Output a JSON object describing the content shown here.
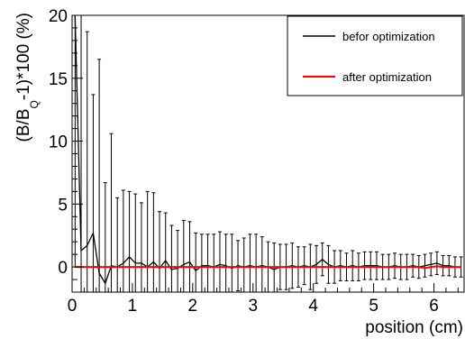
{
  "chart_data": {
    "type": "line",
    "xlabel": "position (cm)",
    "ylabel_parts": [
      "(B/B",
      "Q",
      "-1)*100 (%)"
    ],
    "xlim": [
      0,
      6.5
    ],
    "ylim": [
      -2,
      20
    ],
    "x_ticks": [
      0,
      1,
      2,
      3,
      4,
      5,
      6
    ],
    "y_ticks": [
      0,
      5,
      10,
      15,
      20
    ],
    "legend_position": "top-right",
    "grid": false,
    "series": [
      {
        "name": "befor optimization",
        "color": "#000000",
        "x": [
          0.05,
          0.15,
          0.25,
          0.35,
          0.45,
          0.55,
          0.65,
          0.75,
          0.85,
          0.95,
          1.05,
          1.15,
          1.25,
          1.35,
          1.45,
          1.55,
          1.65,
          1.75,
          1.85,
          1.95,
          2.05,
          2.15,
          2.25,
          2.35,
          2.45,
          2.55,
          2.65,
          2.75,
          2.85,
          2.95,
          3.05,
          3.15,
          3.25,
          3.35,
          3.45,
          3.55,
          3.65,
          3.75,
          3.85,
          3.95,
          4.05,
          4.15,
          4.25,
          4.35,
          4.45,
          4.55,
          4.65,
          4.75,
          4.85,
          4.95,
          5.05,
          5.15,
          5.25,
          5.35,
          5.45,
          5.55,
          5.65,
          5.75,
          5.85,
          5.95,
          6.05,
          6.15,
          6.25,
          6.35,
          6.45
        ],
        "y": [
          20,
          1.3,
          1.7,
          2.7,
          -0.5,
          -1.3,
          0.1,
          0.0,
          0.3,
          0.8,
          0.3,
          0.3,
          0.0,
          0.4,
          -0.1,
          0.5,
          -0.2,
          -0.1,
          0.2,
          0.4,
          -0.3,
          0.1,
          0.1,
          0.0,
          0.2,
          0.1,
          -0.1,
          0.1,
          0.0,
          0.1,
          0.0,
          0.1,
          0.0,
          -0.2,
          0.0,
          0.0,
          0.1,
          0.0,
          0.1,
          0.0,
          0.2,
          0.6,
          0.2,
          0.0,
          0.1,
          0.0,
          0.1,
          0.0,
          0.1,
          0.1,
          0.1,
          0.0,
          0.0,
          0.1,
          0.0,
          0.0,
          0.1,
          0.0,
          0.1,
          0.2,
          0.3,
          0.1,
          0.1,
          0.0,
          0.0
        ],
        "err": [
          20,
          20,
          17,
          11,
          17,
          8,
          10.5,
          5.5,
          5.8,
          5.2,
          5.5,
          4.8,
          6.0,
          5.5,
          4.5,
          3.8,
          3.5,
          3.0,
          3.5,
          3.2,
          3.0,
          2.5,
          2.5,
          2.6,
          2.6,
          2.5,
          2.7,
          2.0,
          2.3,
          2.5,
          2.6,
          2.3,
          2.0,
          2.1,
          1.8,
          1.8,
          1.8,
          1.6,
          1.5,
          1.8,
          1.5,
          1.3,
          1.5,
          1.3,
          1.2,
          1.1,
          1.2,
          1.1,
          1.1,
          1.1,
          1.1,
          1.0,
          1.0,
          1.0,
          1.0,
          1.0,
          0.9,
          0.9,
          0.9,
          0.9,
          0.9,
          0.8,
          0.8,
          0.8,
          0.8
        ]
      },
      {
        "name": "after optimization",
        "color": "#ff0000",
        "x": [
          0.05,
          0.15,
          0.25,
          0.35,
          0.45,
          0.55,
          0.65,
          0.75,
          0.85,
          0.95,
          1.05,
          1.15,
          1.25,
          1.35,
          1.45,
          1.55,
          1.65,
          1.75,
          1.85,
          1.95,
          2.05,
          2.15,
          2.25,
          2.35,
          2.45,
          2.55,
          2.65,
          2.75,
          2.85,
          2.95,
          3.05,
          3.15,
          3.25,
          3.35,
          3.45,
          3.55,
          3.65,
          3.75,
          3.85,
          3.95,
          4.05,
          4.15,
          4.25,
          4.35,
          4.45,
          4.55,
          4.65,
          4.75,
          4.85,
          4.95,
          5.05,
          5.15,
          5.25,
          5.35,
          5.45,
          5.55,
          5.65,
          5.75,
          5.85,
          5.95,
          6.05,
          6.15,
          6.25,
          6.35,
          6.45
        ],
        "y": [
          0,
          0,
          0,
          0,
          0,
          0,
          0,
          0,
          0,
          0,
          0,
          0,
          0,
          0,
          0,
          0,
          0,
          0,
          0,
          0,
          0,
          0,
          0,
          0,
          0,
          0,
          0,
          0,
          0,
          0,
          0,
          0,
          0,
          0,
          0,
          0,
          0,
          0,
          0,
          0,
          0,
          0,
          0,
          0,
          0,
          0,
          0,
          0,
          0,
          0,
          0,
          0,
          0,
          0,
          0,
          0,
          0,
          0,
          -0.1,
          0,
          0.05,
          0,
          0,
          0,
          0
        ]
      }
    ]
  }
}
